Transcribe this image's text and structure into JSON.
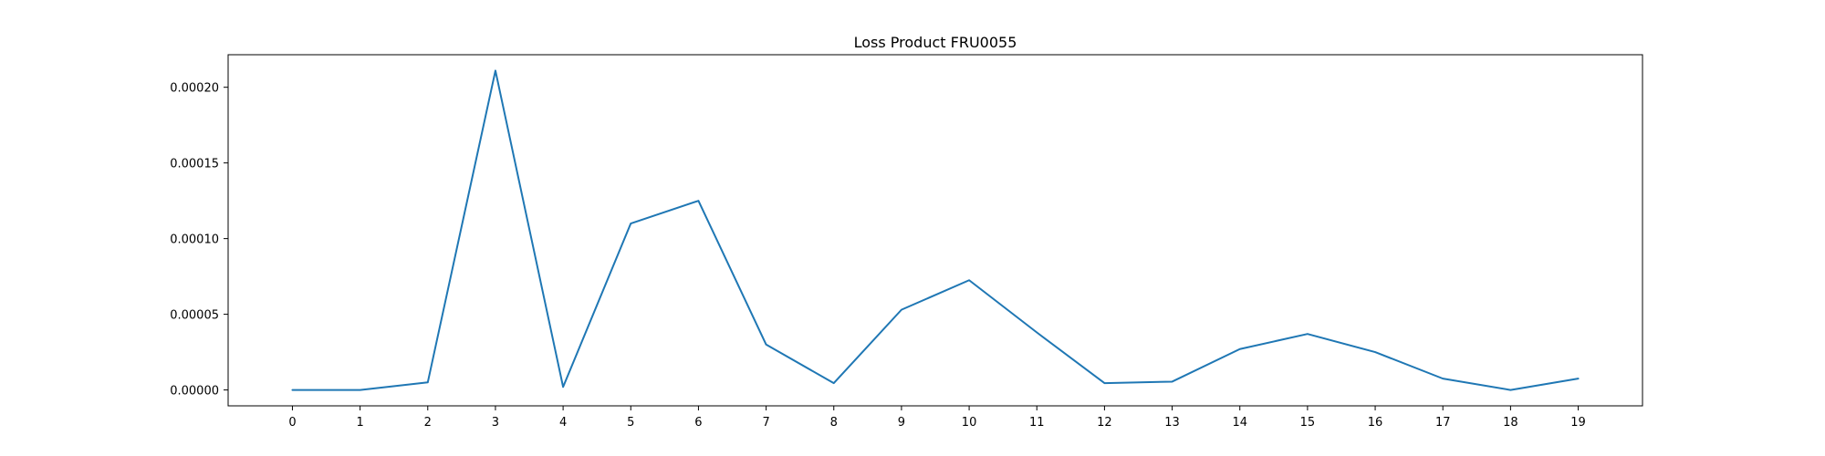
{
  "chart_data": {
    "type": "line",
    "title": "Loss Product FRU0055",
    "xlabel": "",
    "ylabel": "",
    "x": [
      0,
      1,
      2,
      3,
      4,
      5,
      6,
      7,
      8,
      9,
      10,
      11,
      12,
      13,
      14,
      15,
      16,
      17,
      18,
      19
    ],
    "x_tick_labels": [
      "0",
      "1",
      "2",
      "3",
      "4",
      "5",
      "6",
      "7",
      "8",
      "9",
      "10",
      "11",
      "12",
      "13",
      "14",
      "15",
      "16",
      "17",
      "18",
      "19"
    ],
    "series": [
      {
        "color": "#1f77b4",
        "values": [
          0.0,
          0.0,
          5e-06,
          0.000211,
          2e-06,
          0.00011,
          0.000125,
          3e-05,
          4.5e-06,
          5.3e-05,
          7.25e-05,
          3.8e-05,
          4.5e-06,
          5.5e-06,
          2.7e-05,
          3.7e-05,
          2.5e-05,
          7.5e-06,
          0.0,
          7.5e-06
        ]
      }
    ],
    "yticks": [
      0.0,
      5e-05,
      0.0001,
      0.00015,
      0.0002
    ],
    "ytick_labels": [
      "0.00000",
      "0.00005",
      "0.00010",
      "0.00015",
      "0.00020"
    ],
    "xlim": [
      -0.95,
      19.95
    ],
    "ylim": [
      -1.05e-05,
      0.0002215
    ],
    "grid": false,
    "legend": "none"
  }
}
